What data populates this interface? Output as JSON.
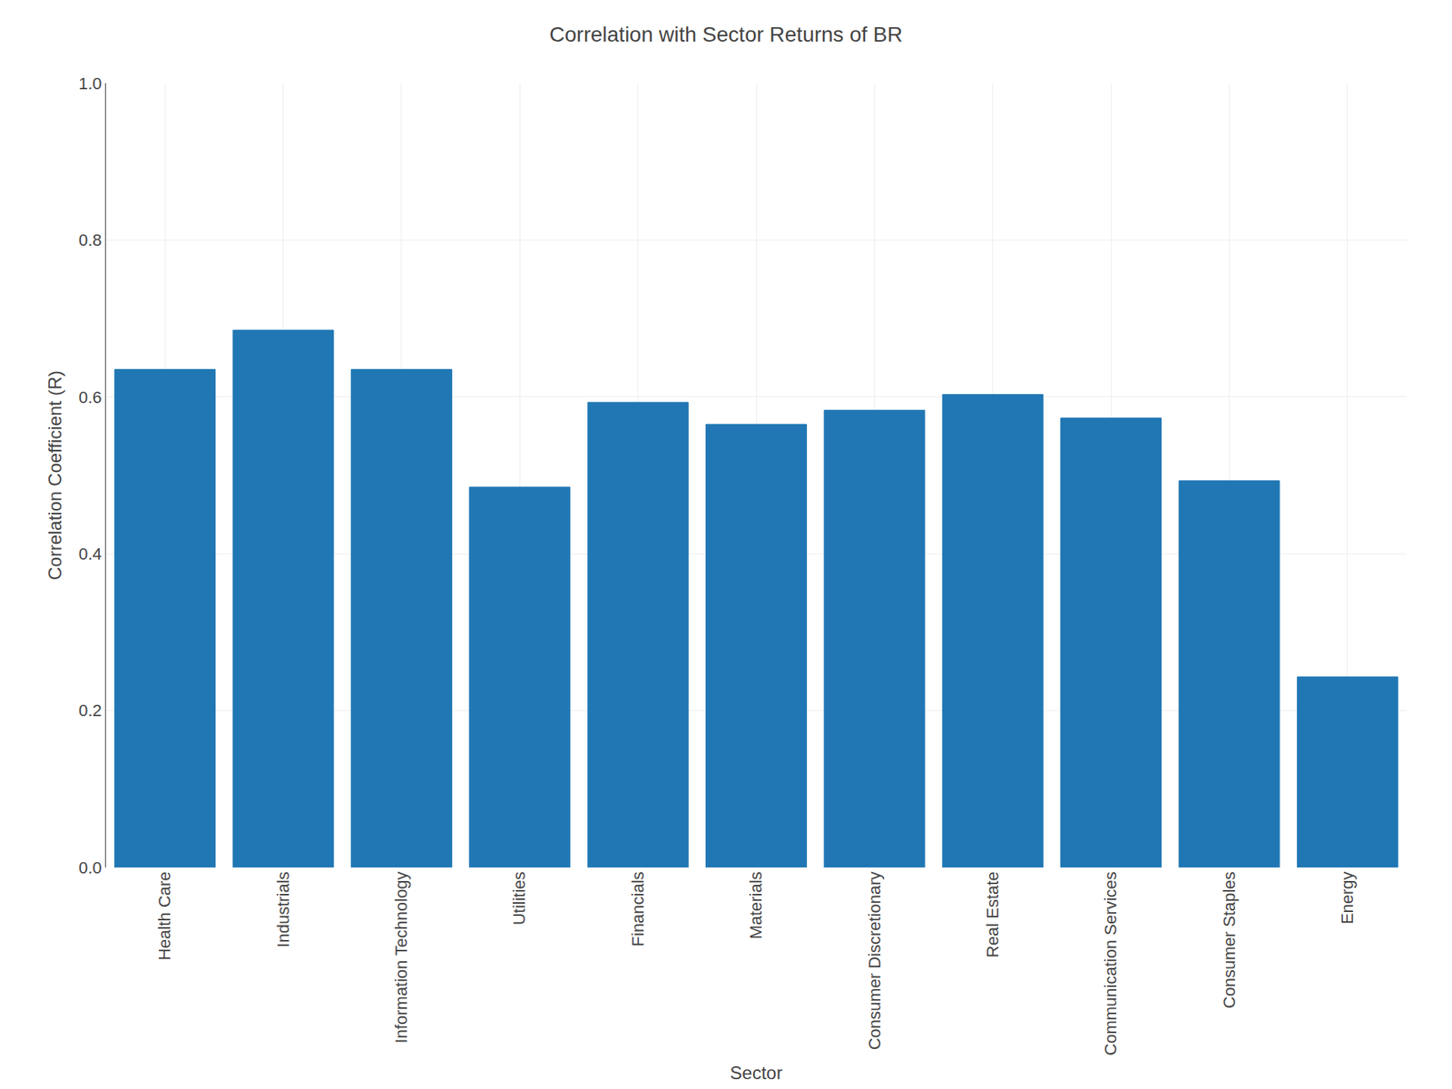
{
  "chart_data": {
    "type": "bar",
    "title": "Correlation with Sector Returns of BR",
    "xlabel": "Sector",
    "ylabel": "Correlation Coefficient (R)",
    "categories": [
      "Health Care",
      "Industrials",
      "Information Technology",
      "Utilities",
      "Financials",
      "Materials",
      "Consumer Discretionary",
      "Real Estate",
      "Communication Services",
      "Consumer Staples",
      "Energy"
    ],
    "values": [
      0.635,
      0.685,
      0.635,
      0.485,
      0.593,
      0.565,
      0.583,
      0.603,
      0.573,
      0.493,
      0.243
    ],
    "color": "#2077b4",
    "ylim": [
      0.0,
      1.0
    ],
    "yticks": [
      {
        "value": 0.0,
        "label": "0.0"
      },
      0.2,
      0.4,
      0.6,
      0.8,
      {
        "value": 1.0,
        "label": "1.0"
      }
    ],
    "grid": true
  }
}
